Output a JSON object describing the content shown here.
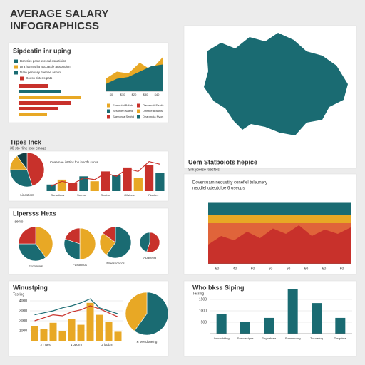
{
  "header": {
    "title": [
      "AVERAGE SALARY",
      "INFOGRAPHICSS"
    ]
  },
  "panels": [
    {
      "title": "Sipdeatin inr uping",
      "legend": [
        {
          "label": "Borotios pesle ete oul osnetioiat",
          "color": "#1a6b72"
        },
        {
          "label": "Dra hareas lia ascuatsle artsonolen",
          "color": "#e8a825"
        },
        {
          "label": "Nare pennasy flaenee asnilo",
          "color": "#1a6b72"
        }
      ],
      "bar_legend": {
        "label": "Dooss bbtens pats",
        "color": "#c8312b"
      },
      "bars": {
        "xlim": [
          0,
          100
        ],
        "values": [
          42,
          60,
          88,
          74,
          55,
          40
        ],
        "colors": [
          "#c8312b",
          "#1a6b72",
          "#e8a825",
          "#c8312b",
          "#c8312b",
          "#e8a825"
        ]
      },
      "area": {
        "ylim": [
          0,
          100
        ],
        "x_labels": [
          "$0",
          "$10",
          "$20",
          "$30",
          "$40"
        ],
        "series": [
          {
            "color": "#e8a825",
            "values": [
              35,
              55,
              50,
              80,
              60,
              95
            ]
          },
          {
            "color": "#1a6b72",
            "values": [
              20,
              35,
              40,
              55,
              70,
              75
            ]
          }
        ],
        "legend": [
          {
            "label": "Eomsulat Bdiatd",
            "color": "#e8a825"
          },
          {
            "label": "Oarnesatl Eeatis",
            "color": "#c8312b"
          },
          {
            "label": "Besotilen Nasrd",
            "color": "#1a6b72"
          },
          {
            "label": "Dlnstue Bdtanis",
            "color": "#e8a825"
          },
          {
            "label": "Saenoroa Seuhd",
            "color": "#c8312b"
          },
          {
            "label": "Deaprnoia Nvort",
            "color": "#1a6b72"
          }
        ]
      }
    },
    {
      "title": "Tipes Inck",
      "subtitle": "30 sto rlinc iexe clnogs",
      "pie": {
        "values": [
          45,
          30,
          15,
          10
        ],
        "colors": [
          "#c8312b",
          "#1a6b72",
          "#e8a825",
          "#123f44"
        ],
        "label": "Linestiont"
      },
      "bar_title": "Cnaamae intttins fon insctfs sonta",
      "bars": {
        "ylim": [
          0,
          100
        ],
        "values": [
          20,
          35,
          25,
          45,
          30,
          60,
          50,
          72,
          40,
          80,
          55
        ],
        "colors": [
          "#1a6b72",
          "#e8a825",
          "#c8312b",
          "#1a6b72",
          "#e8a825",
          "#c8312b",
          "#1a6b72",
          "#c8312b",
          "#e8a825",
          "#c8312b",
          "#1a6b72"
        ]
      },
      "line": {
        "color": "#c8312b",
        "values": [
          15,
          30,
          22,
          40,
          35,
          55,
          45,
          68,
          60,
          90,
          82
        ]
      },
      "x_labels": [
        "Sorastions",
        "Sornas",
        "Sinatse",
        "Ofistane",
        "Fiaoties"
      ]
    },
    {
      "title": "Uem Statboiots hepice",
      "subtitle": "Sitk yoerse foesfers",
      "note": [
        "Doversuam nedustity conefiel tuleunery",
        "neodlel odeotoloe 6 osegps"
      ],
      "ylim": [
        0,
        60
      ],
      "series": [
        {
          "color": "#1a6b72",
          "values": [
            57,
            57,
            57,
            57,
            57,
            57,
            57,
            57,
            57,
            57,
            57,
            57
          ]
        },
        {
          "color": "#e8a825",
          "values": [
            46,
            46,
            46,
            46,
            46,
            46,
            46,
            46,
            46,
            46,
            46,
            46
          ]
        },
        {
          "color": "#e0643a",
          "values": [
            38,
            38,
            38,
            38,
            38,
            38,
            38,
            38,
            38,
            38,
            38,
            38
          ]
        },
        {
          "color": "#c8312b",
          "values": [
            18,
            26,
            22,
            30,
            24,
            33,
            28,
            36,
            26,
            32,
            28,
            34
          ]
        }
      ],
      "x_labels": [
        60,
        40,
        60,
        60,
        60,
        60,
        60,
        60
      ]
    },
    {
      "title": "Lipersss Hexs",
      "subtitle": "Tsenlo",
      "pies": [
        {
          "values": [
            40,
            35,
            25
          ],
          "colors": [
            "#e8a825",
            "#1a6b72",
            "#c8312b"
          ],
          "label": "Fsonsrors"
        },
        {
          "values": [
            50,
            30,
            20
          ],
          "colors": [
            "#e8a825",
            "#1a6b72",
            "#c8312b"
          ],
          "label": "Fasonnus"
        },
        {
          "values": [
            60,
            25,
            15
          ],
          "colors": [
            "#1a6b72",
            "#e8a825",
            "#c8312b"
          ],
          "label": "Nlaessceccs"
        },
        {
          "values": [
            55,
            45
          ],
          "colors": [
            "#c8312b",
            "#1a6b72"
          ],
          "label": "Apaceng"
        }
      ]
    },
    {
      "title": "Winustping",
      "subtitle": "Tesring",
      "ylim": [
        0,
        4500
      ],
      "yticks": [
        1000,
        2000,
        3000,
        4000
      ],
      "bars": {
        "color": "#e8a825",
        "values": [
          1500,
          1200,
          1800,
          1000,
          2200,
          1600,
          3800,
          2600,
          1900,
          900
        ]
      },
      "lines": [
        {
          "color": "#c8312b",
          "values": [
            2000,
            2300,
            2600,
            2500,
            2900,
            3100,
            3500,
            3200,
            2800,
            2400
          ]
        },
        {
          "color": "#1a6b72",
          "values": [
            2600,
            2800,
            3000,
            3300,
            3500,
            3800,
            4200,
            3300,
            3000,
            2700
          ]
        }
      ],
      "x_labels": [
        "2 I Nes",
        "1 Jpgrm",
        "2 lagbrn"
      ],
      "pie": {
        "values": [
          60,
          40
        ],
        "colors": [
          "#1a6b72",
          "#e8a825"
        ],
        "label": "& Mesdoneing"
      }
    },
    {
      "title": "Who bkss Siping",
      "subtitle": "Tesring",
      "ylim": [
        0,
        2000
      ],
      "yticks": [
        500,
        1000,
        1500
      ],
      "bars": {
        "color": "#1a6b72",
        "values": [
          875,
          500,
          690,
          1940,
          1340,
          690
        ]
      },
      "x_labels": [
        "Ionsorrbtling",
        "Soscdesigne",
        "Dsgnabrea",
        "Sovmnscing",
        "Tnsoaring",
        "Tesgnisre"
      ]
    }
  ]
}
